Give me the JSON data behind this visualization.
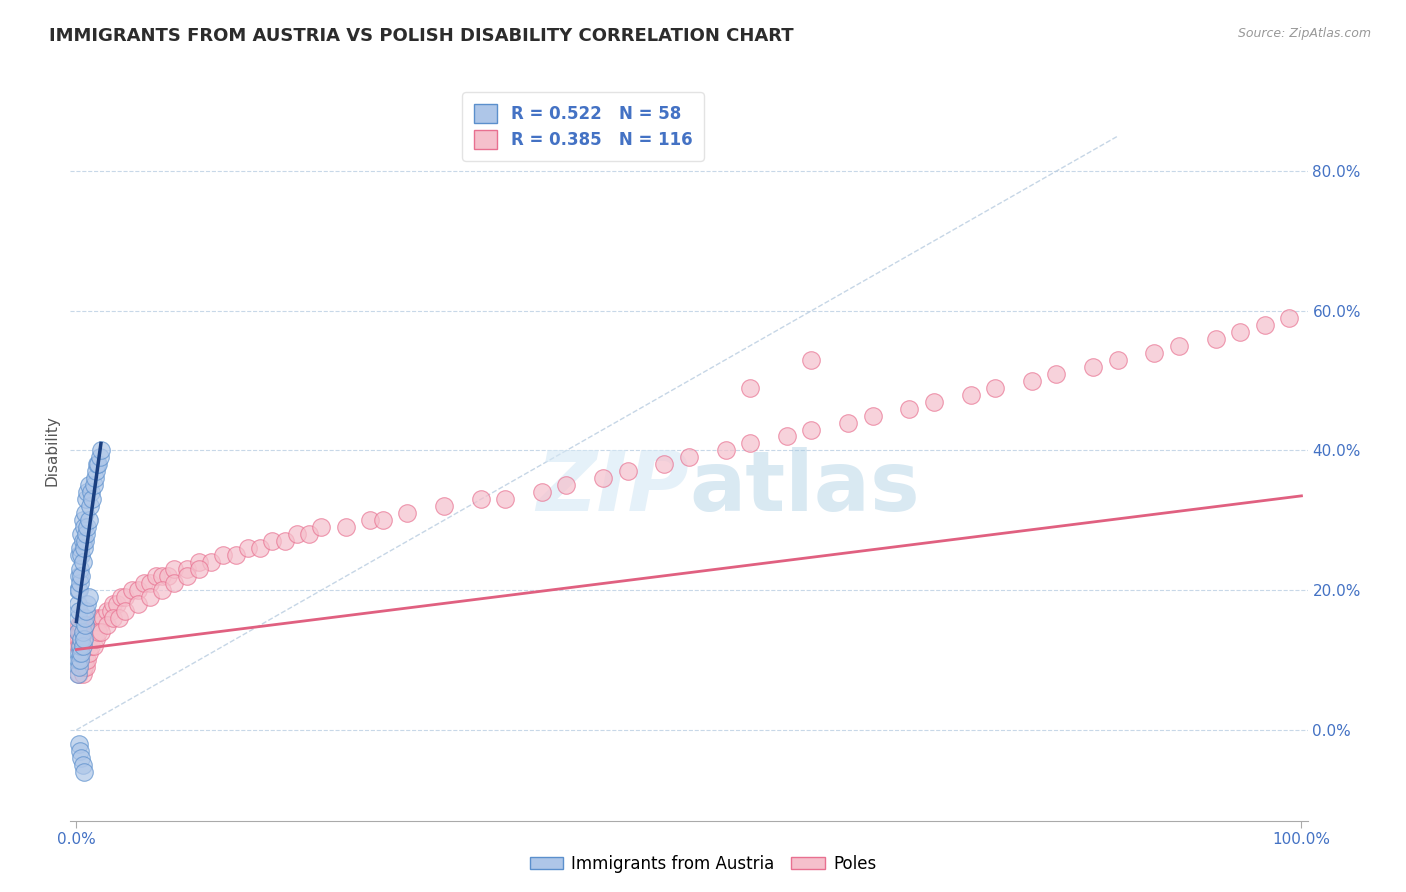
{
  "title": "IMMIGRANTS FROM AUSTRIA VS POLISH DISABILITY CORRELATION CHART",
  "source": "Source: ZipAtlas.com",
  "xlabel": "",
  "ylabel": "Disability",
  "xlim": [
    -0.005,
    1.005
  ],
  "ylim": [
    -0.13,
    0.93
  ],
  "yticks": [
    0.0,
    0.2,
    0.4,
    0.6,
    0.8
  ],
  "ytick_labels": [
    "0.0%",
    "20.0%",
    "40.0%",
    "60.0%",
    "80.0%"
  ],
  "xticks": [
    0.0,
    1.0
  ],
  "xtick_labels": [
    "0.0%",
    "100.0%"
  ],
  "blue_color": "#aec6e8",
  "blue_edge_color": "#5b8fcc",
  "pink_color": "#f5c0cc",
  "pink_edge_color": "#e87090",
  "blue_line_color": "#1a3f80",
  "pink_line_color": "#e06080",
  "ref_line_color": "#b8cce0",
  "legend_R1": "R = 0.522",
  "legend_N1": "N = 58",
  "legend_R2": "R = 0.385",
  "legend_N2": "N = 116",
  "legend_label1": "Immigrants from Austria",
  "legend_label2": "Poles",
  "title_color": "#2c2c2c",
  "axis_color": "#555555",
  "tick_color": "#4472c4",
  "grid_color": "#c8d8e8",
  "watermark_color": "#d5e8f5",
  "blue_scatter_x": [
    0.001,
    0.001,
    0.001,
    0.001,
    0.002,
    0.002,
    0.002,
    0.002,
    0.003,
    0.003,
    0.003,
    0.004,
    0.004,
    0.004,
    0.005,
    0.005,
    0.005,
    0.006,
    0.006,
    0.007,
    0.007,
    0.008,
    0.008,
    0.009,
    0.009,
    0.01,
    0.01,
    0.011,
    0.012,
    0.013,
    0.014,
    0.015,
    0.016,
    0.017,
    0.018,
    0.019,
    0.02,
    0.001,
    0.001,
    0.002,
    0.002,
    0.003,
    0.003,
    0.004,
    0.004,
    0.005,
    0.005,
    0.006,
    0.007,
    0.007,
    0.008,
    0.009,
    0.01,
    0.002,
    0.003,
    0.004,
    0.005,
    0.006
  ],
  "blue_scatter_y": [
    0.14,
    0.16,
    0.18,
    0.2,
    0.17,
    0.2,
    0.22,
    0.25,
    0.21,
    0.23,
    0.26,
    0.22,
    0.25,
    0.28,
    0.24,
    0.27,
    0.3,
    0.26,
    0.29,
    0.27,
    0.31,
    0.28,
    0.33,
    0.29,
    0.34,
    0.3,
    0.35,
    0.32,
    0.34,
    0.33,
    0.35,
    0.36,
    0.37,
    0.38,
    0.38,
    0.39,
    0.4,
    0.08,
    0.1,
    0.09,
    0.11,
    0.1,
    0.12,
    0.11,
    0.13,
    0.12,
    0.14,
    0.13,
    0.15,
    0.16,
    0.17,
    0.18,
    0.19,
    -0.02,
    -0.03,
    -0.04,
    -0.05,
    -0.06
  ],
  "pink_scatter_x": [
    0.001,
    0.001,
    0.002,
    0.002,
    0.003,
    0.003,
    0.004,
    0.004,
    0.005,
    0.005,
    0.006,
    0.006,
    0.007,
    0.007,
    0.008,
    0.008,
    0.009,
    0.009,
    0.01,
    0.01,
    0.011,
    0.012,
    0.013,
    0.014,
    0.015,
    0.016,
    0.017,
    0.018,
    0.019,
    0.02,
    0.022,
    0.025,
    0.028,
    0.03,
    0.033,
    0.036,
    0.04,
    0.045,
    0.05,
    0.055,
    0.06,
    0.065,
    0.07,
    0.075,
    0.08,
    0.09,
    0.1,
    0.11,
    0.12,
    0.13,
    0.14,
    0.15,
    0.16,
    0.17,
    0.18,
    0.19,
    0.2,
    0.22,
    0.24,
    0.25,
    0.27,
    0.3,
    0.33,
    0.35,
    0.38,
    0.4,
    0.43,
    0.45,
    0.48,
    0.5,
    0.53,
    0.55,
    0.58,
    0.6,
    0.63,
    0.65,
    0.68,
    0.7,
    0.73,
    0.75,
    0.78,
    0.8,
    0.83,
    0.85,
    0.88,
    0.9,
    0.93,
    0.95,
    0.97,
    0.99,
    0.002,
    0.003,
    0.004,
    0.005,
    0.006,
    0.007,
    0.008,
    0.009,
    0.01,
    0.012,
    0.014,
    0.016,
    0.018,
    0.02,
    0.025,
    0.03,
    0.035,
    0.04,
    0.05,
    0.06,
    0.07,
    0.08,
    0.09,
    0.1,
    0.55,
    0.6
  ],
  "pink_scatter_y": [
    0.12,
    0.14,
    0.13,
    0.15,
    0.12,
    0.14,
    0.13,
    0.15,
    0.12,
    0.14,
    0.13,
    0.15,
    0.12,
    0.14,
    0.13,
    0.15,
    0.12,
    0.14,
    0.13,
    0.15,
    0.14,
    0.14,
    0.15,
    0.14,
    0.15,
    0.14,
    0.15,
    0.16,
    0.15,
    0.16,
    0.16,
    0.17,
    0.17,
    0.18,
    0.18,
    0.19,
    0.19,
    0.2,
    0.2,
    0.21,
    0.21,
    0.22,
    0.22,
    0.22,
    0.23,
    0.23,
    0.24,
    0.24,
    0.25,
    0.25,
    0.26,
    0.26,
    0.27,
    0.27,
    0.28,
    0.28,
    0.29,
    0.29,
    0.3,
    0.3,
    0.31,
    0.32,
    0.33,
    0.33,
    0.34,
    0.35,
    0.36,
    0.37,
    0.38,
    0.39,
    0.4,
    0.41,
    0.42,
    0.43,
    0.44,
    0.45,
    0.46,
    0.47,
    0.48,
    0.49,
    0.5,
    0.51,
    0.52,
    0.53,
    0.54,
    0.55,
    0.56,
    0.57,
    0.58,
    0.59,
    0.08,
    0.09,
    0.1,
    0.08,
    0.09,
    0.1,
    0.09,
    0.1,
    0.11,
    0.12,
    0.12,
    0.13,
    0.14,
    0.14,
    0.15,
    0.16,
    0.16,
    0.17,
    0.18,
    0.19,
    0.2,
    0.21,
    0.22,
    0.23,
    0.49,
    0.53
  ],
  "blue_line_x": [
    0.0,
    0.02
  ],
  "blue_line_y": [
    0.155,
    0.41
  ],
  "pink_line_x": [
    0.0,
    1.0
  ],
  "pink_line_y": [
    0.115,
    0.335
  ],
  "ref_line_x": [
    0.0,
    0.85
  ],
  "ref_line_y": [
    0.0,
    0.85
  ]
}
